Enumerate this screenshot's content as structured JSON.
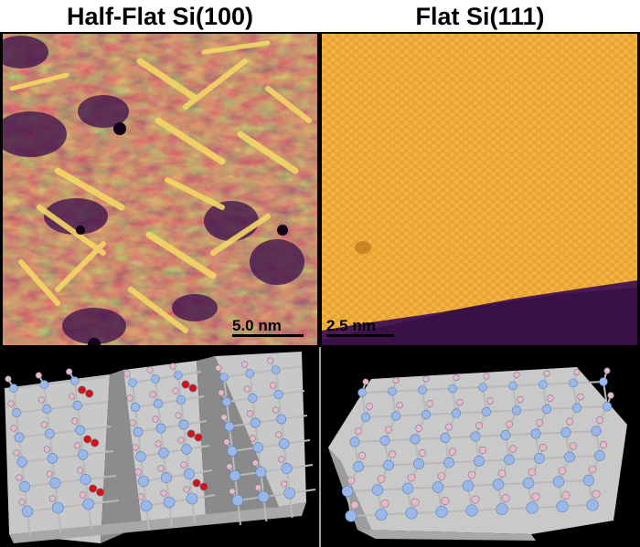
{
  "panels": {
    "left": {
      "title": "Half-Flat Si(100)",
      "scale_bar": "5.0 nm"
    },
    "right": {
      "title": "Flat Si(111)",
      "scale_bar": "2.5 nm"
    }
  },
  "colors": {
    "stm_dark": "#3a0f4a",
    "stm_mid": "#a7462f",
    "stm_bright": "#f6e071",
    "stm_flat": "#e6a532",
    "background_model": "#000000",
    "surface_plane": "#c9c9c9",
    "si_atom": "#9ab7ea",
    "h_atom": "#efb6c0",
    "o_atom": "#d01414"
  },
  "legend_icons": [
    "stm-image",
    "atomic-model"
  ]
}
